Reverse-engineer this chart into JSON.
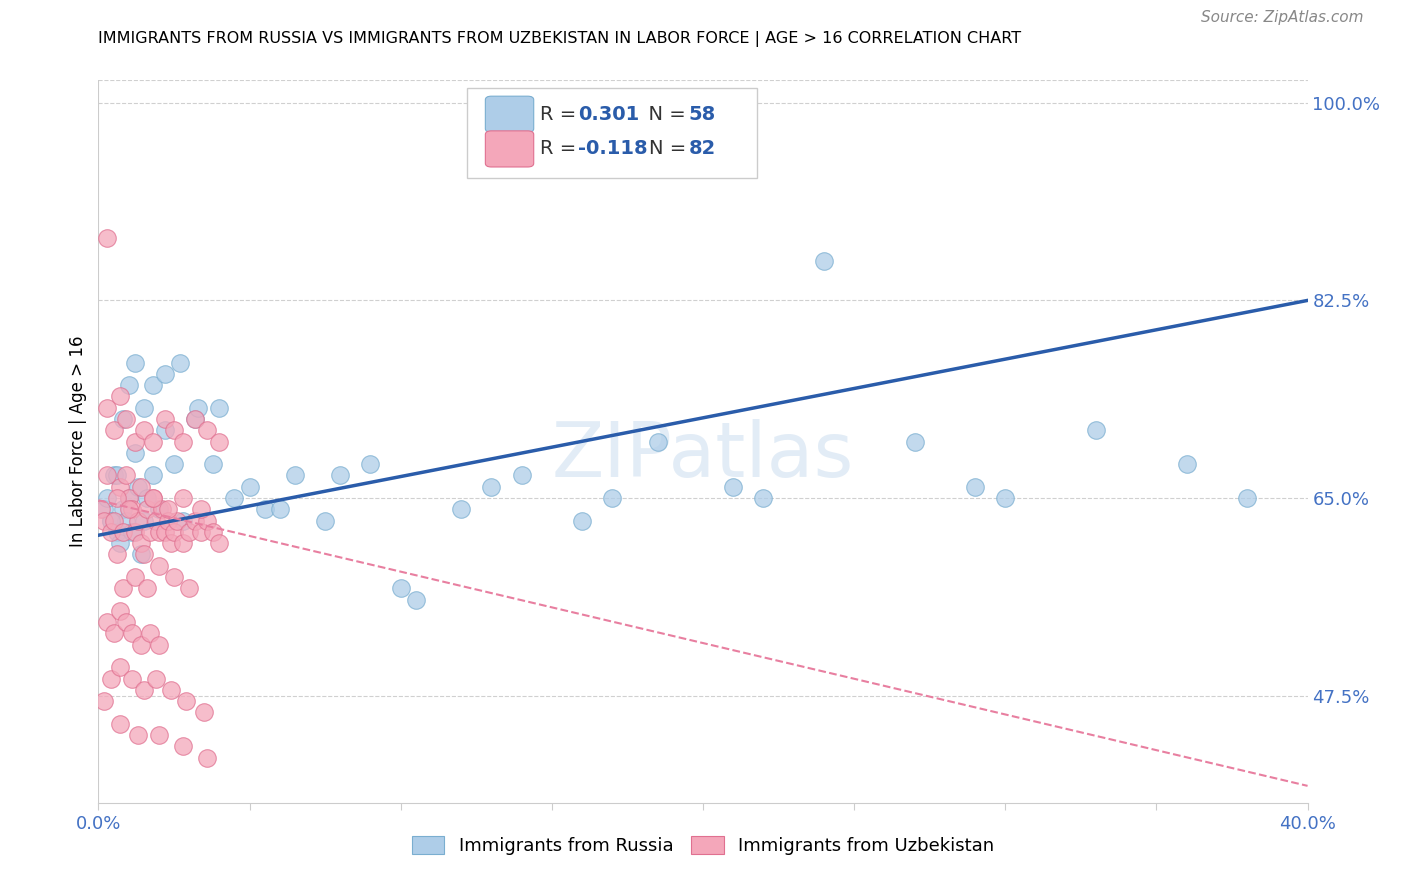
{
  "title": "IMMIGRANTS FROM RUSSIA VS IMMIGRANTS FROM UZBEKISTAN IN LABOR FORCE | AGE > 16 CORRELATION CHART",
  "source": "Source: ZipAtlas.com",
  "ylabel": "In Labor Force | Age > 16",
  "xlim": [
    0.0,
    0.4
  ],
  "ylim": [
    0.38,
    1.02
  ],
  "ytick_positions": [
    0.475,
    0.65,
    0.825,
    1.0
  ],
  "ytick_labels": [
    "47.5%",
    "65.0%",
    "82.5%",
    "100.0%"
  ],
  "russia_R": 0.301,
  "russia_N": 58,
  "uzbekistan_R": -0.118,
  "uzbekistan_N": 82,
  "russia_color": "#aecde8",
  "uzbekistan_color": "#f4a7ba",
  "russia_line_color": "#2a5caa",
  "uzbekistan_line_color": "#e87fa0",
  "watermark": "ZIPatlas",
  "russia_line_y0": 0.617,
  "russia_line_y1": 0.825,
  "uzbekistan_line_y0": 0.648,
  "uzbekistan_line_y1": 0.395,
  "russia_x": [
    0.002,
    0.003,
    0.004,
    0.005,
    0.006,
    0.007,
    0.008,
    0.009,
    0.01,
    0.011,
    0.012,
    0.013,
    0.014,
    0.015,
    0.016,
    0.018,
    0.02,
    0.022,
    0.025,
    0.028,
    0.032,
    0.038,
    0.045,
    0.055,
    0.065,
    0.075,
    0.09,
    0.105,
    0.12,
    0.14,
    0.16,
    0.185,
    0.21,
    0.24,
    0.27,
    0.3,
    0.33,
    0.36,
    0.38,
    0.004,
    0.006,
    0.008,
    0.01,
    0.012,
    0.015,
    0.018,
    0.022,
    0.027,
    0.033,
    0.04,
    0.05,
    0.06,
    0.08,
    0.1,
    0.13,
    0.17,
    0.22,
    0.29
  ],
  "russia_y": [
    0.64,
    0.65,
    0.63,
    0.67,
    0.62,
    0.61,
    0.64,
    0.63,
    0.65,
    0.62,
    0.69,
    0.66,
    0.6,
    0.63,
    0.65,
    0.67,
    0.64,
    0.71,
    0.68,
    0.63,
    0.72,
    0.68,
    0.65,
    0.64,
    0.67,
    0.63,
    0.68,
    0.56,
    0.64,
    0.67,
    0.63,
    0.7,
    0.66,
    0.86,
    0.7,
    0.65,
    0.71,
    0.68,
    0.65,
    0.63,
    0.67,
    0.72,
    0.75,
    0.77,
    0.73,
    0.75,
    0.76,
    0.77,
    0.73,
    0.73,
    0.66,
    0.64,
    0.67,
    0.57,
    0.66,
    0.65,
    0.65,
    0.66
  ],
  "uzbekistan_x": [
    0.001,
    0.002,
    0.003,
    0.004,
    0.005,
    0.006,
    0.007,
    0.008,
    0.009,
    0.01,
    0.011,
    0.012,
    0.013,
    0.014,
    0.015,
    0.016,
    0.017,
    0.018,
    0.019,
    0.02,
    0.021,
    0.022,
    0.023,
    0.024,
    0.025,
    0.026,
    0.028,
    0.03,
    0.032,
    0.034,
    0.036,
    0.038,
    0.04,
    0.003,
    0.005,
    0.007,
    0.009,
    0.012,
    0.015,
    0.018,
    0.022,
    0.025,
    0.028,
    0.032,
    0.036,
    0.04,
    0.003,
    0.006,
    0.01,
    0.014,
    0.018,
    0.023,
    0.028,
    0.034,
    0.008,
    0.012,
    0.016,
    0.02,
    0.025,
    0.03,
    0.003,
    0.005,
    0.007,
    0.009,
    0.011,
    0.014,
    0.017,
    0.02,
    0.004,
    0.007,
    0.011,
    0.015,
    0.019,
    0.024,
    0.029,
    0.035,
    0.007,
    0.013,
    0.02,
    0.028,
    0.036,
    0.002
  ],
  "uzbekistan_y": [
    0.64,
    0.63,
    0.88,
    0.62,
    0.63,
    0.6,
    0.66,
    0.62,
    0.67,
    0.65,
    0.64,
    0.62,
    0.63,
    0.61,
    0.6,
    0.64,
    0.62,
    0.65,
    0.63,
    0.62,
    0.64,
    0.62,
    0.63,
    0.61,
    0.62,
    0.63,
    0.61,
    0.62,
    0.63,
    0.62,
    0.63,
    0.62,
    0.61,
    0.73,
    0.71,
    0.74,
    0.72,
    0.7,
    0.71,
    0.7,
    0.72,
    0.71,
    0.7,
    0.72,
    0.71,
    0.7,
    0.67,
    0.65,
    0.64,
    0.66,
    0.65,
    0.64,
    0.65,
    0.64,
    0.57,
    0.58,
    0.57,
    0.59,
    0.58,
    0.57,
    0.54,
    0.53,
    0.55,
    0.54,
    0.53,
    0.52,
    0.53,
    0.52,
    0.49,
    0.5,
    0.49,
    0.48,
    0.49,
    0.48,
    0.47,
    0.46,
    0.45,
    0.44,
    0.44,
    0.43,
    0.42,
    0.47
  ]
}
